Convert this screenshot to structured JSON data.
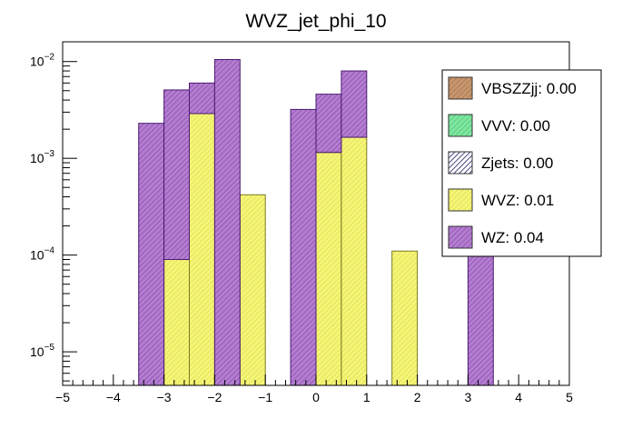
{
  "chart_data": {
    "type": "bar",
    "stacked": true,
    "title": "WVZ_jet_phi_10",
    "xlabel": "",
    "ylabel": "",
    "xlim": [
      -5,
      5
    ],
    "ylim": [
      4.5e-06,
      0.016
    ],
    "yscale": "log",
    "bin_width": 0.5,
    "x_ticks": [
      "−5",
      "−4",
      "−3",
      "−2",
      "−1",
      "0",
      "1",
      "2",
      "3",
      "4",
      "5"
    ],
    "x_tick_values": [
      -5,
      -4,
      -3,
      -2,
      -1,
      0,
      1,
      2,
      3,
      4,
      5
    ],
    "y_ticks": [
      {
        "base": "10",
        "exp": "−5",
        "value": 1e-05
      },
      {
        "base": "10",
        "exp": "−4",
        "value": 0.0001
      },
      {
        "base": "10",
        "exp": "−3",
        "value": 0.001
      },
      {
        "base": "10",
        "exp": "−2",
        "value": 0.01
      }
    ],
    "bin_edges_low": [
      -3.5,
      -3.0,
      -2.5,
      -2.0,
      -1.5,
      -1.0,
      -0.5,
      0.0,
      0.5,
      1.0,
      1.5,
      2.0,
      2.5,
      3.0
    ],
    "series": [
      {
        "name": "WVZ",
        "color": "#f5f57a",
        "values": [
          0,
          9e-05,
          0.0029,
          0,
          0.00042,
          0,
          0,
          0.00115,
          0.00165,
          0,
          0.00011,
          0,
          0,
          0
        ]
      },
      {
        "name": "WZ",
        "color": "#b27fce",
        "values": [
          0.0023,
          0.005,
          0.0031,
          0.0105,
          0,
          0,
          0.0032,
          0.00345,
          0.00635,
          0,
          0,
          0,
          0,
          0.0001
        ]
      }
    ],
    "legend": [
      {
        "label": "VBSZZjj: 0.00",
        "color": "#c8966e"
      },
      {
        "label": "VVV: 0.00",
        "color": "#80e6a0"
      },
      {
        "label": "Zjets: 0.00",
        "color": "#1a1a66"
      },
      {
        "label": "WVZ: 0.01",
        "color": "#f5f57a"
      },
      {
        "label": "WZ: 0.04",
        "color": "#b27fce"
      }
    ],
    "legend_position": "top-right"
  }
}
